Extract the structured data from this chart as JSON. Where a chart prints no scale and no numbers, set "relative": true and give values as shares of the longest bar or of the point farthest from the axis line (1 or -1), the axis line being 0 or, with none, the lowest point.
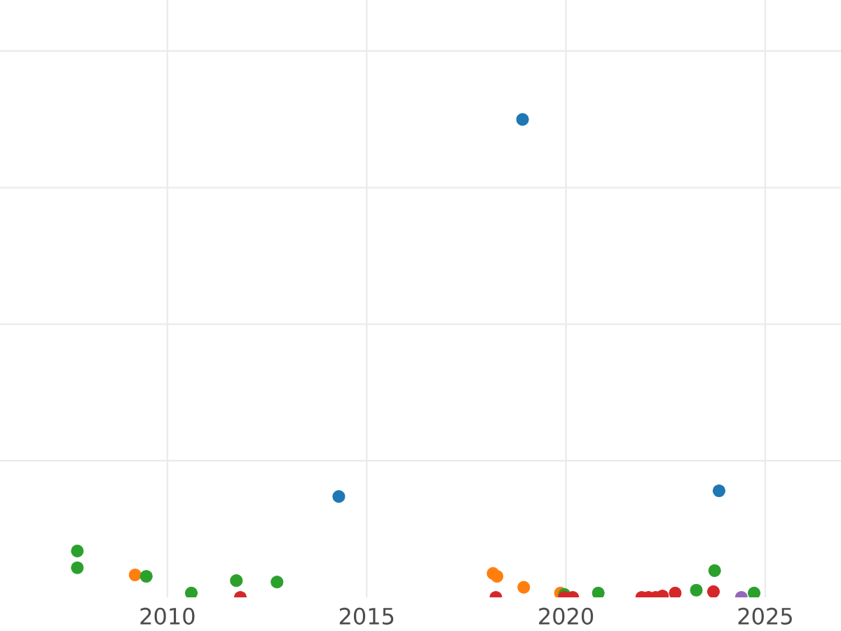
{
  "chart_data": {
    "type": "scatter",
    "relative": true,
    "grid": true,
    "tick_labels": "x",
    "xlim": [
      2005.8,
      2026.9
    ],
    "xticks": [
      2010,
      2015,
      2020,
      2025
    ],
    "series": [
      {
        "color": "#1f77b4",
        "x": [
          2018.91,
          2014.3,
          2023.84
        ],
        "values": [
          1.0,
          0.211,
          0.223
        ]
      },
      {
        "color": "#ff7f0e",
        "x": [
          2009.19,
          2018.17,
          2018.27,
          2018.94,
          2019.86
        ],
        "values": [
          0.047,
          0.05,
          0.044,
          0.021,
          0.009
        ]
      },
      {
        "color": "#2ca02c",
        "x": [
          2007.74,
          2007.74,
          2009.47,
          2010.6,
          2011.73,
          2012.75,
          2019.96,
          2020.81,
          2023.27,
          2023.73,
          2024.72
        ],
        "values": [
          0.097,
          0.062,
          0.044,
          0.009,
          0.035,
          0.032,
          0.006,
          0.009,
          0.015,
          0.056,
          0.009
        ]
      },
      {
        "color": "#d62728",
        "x": [
          2011.83,
          2018.24,
          2019.96,
          2020.17,
          2021.9,
          2022.07,
          2022.25,
          2022.42,
          2022.74,
          2023.7
        ],
        "values": [
          0,
          0,
          0,
          0,
          0,
          0,
          0,
          0.003,
          0.009,
          0.012
        ]
      },
      {
        "color": "#9467bd",
        "x": [
          2024.4
        ],
        "values": [
          0
        ]
      }
    ]
  }
}
